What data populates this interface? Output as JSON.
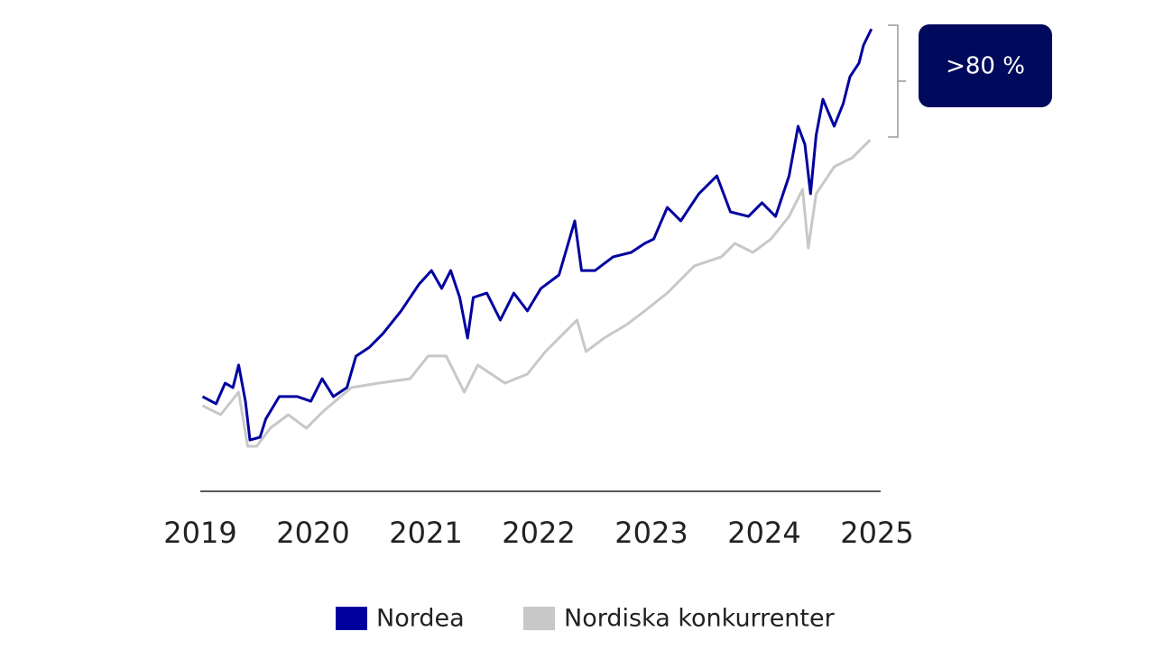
{
  "chart_data": {
    "type": "line",
    "annotation": ">80 %",
    "xlim": [
      2019,
      2025
    ],
    "xticks": [
      2019,
      2020,
      2021,
      2022,
      2023,
      2024,
      2025
    ],
    "ylim": [
      0,
      200
    ],
    "series": [
      {
        "name": "Nordiska konkurrenter",
        "color": "#c8c8c8",
        "x": [
          2019.02,
          2019.18,
          2019.34,
          2019.42,
          2019.5,
          2019.62,
          2019.78,
          2019.94,
          2020.1,
          2020.34,
          2020.58,
          2020.86,
          2021.02,
          2021.18,
          2021.34,
          2021.46,
          2021.7,
          2021.9,
          2022.06,
          2022.22,
          2022.34,
          2022.42,
          2022.58,
          2022.78,
          2022.94,
          2023.14,
          2023.38,
          2023.62,
          2023.74,
          2023.9,
          2024.06,
          2024.22,
          2024.34,
          2024.39,
          2024.46,
          2024.62,
          2024.78,
          2024.94
        ],
        "values": [
          36.9,
          33.0,
          42.7,
          19.4,
          19.4,
          27.2,
          33.0,
          27.2,
          34.9,
          44.7,
          46.6,
          48.5,
          58.3,
          58.3,
          42.7,
          54.4,
          46.6,
          50.5,
          60.2,
          68.0,
          73.8,
          60.2,
          66.0,
          71.8,
          77.7,
          85.4,
          97.1,
          101.0,
          106.8,
          102.9,
          108.7,
          118.4,
          130.1,
          104.8,
          128.1,
          139.8,
          143.7,
          151.4
        ]
      },
      {
        "name": "Nordea",
        "color": "#0000a0",
        "x": [
          2019.02,
          2019.14,
          2019.22,
          2019.29,
          2019.34,
          2019.4,
          2019.44,
          2019.53,
          2019.58,
          2019.7,
          2019.86,
          2019.98,
          2020.08,
          2020.18,
          2020.3,
          2020.38,
          2020.5,
          2020.62,
          2020.78,
          2020.94,
          2021.05,
          2021.14,
          2021.22,
          2021.3,
          2021.37,
          2021.42,
          2021.54,
          2021.66,
          2021.78,
          2021.9,
          2022.02,
          2022.18,
          2022.32,
          2022.38,
          2022.5,
          2022.66,
          2022.82,
          2022.94,
          2023.02,
          2023.14,
          2023.26,
          2023.42,
          2023.58,
          2023.7,
          2023.86,
          2023.98,
          2024.1,
          2024.22,
          2024.3,
          2024.36,
          2024.41,
          2024.46,
          2024.52,
          2024.62,
          2024.7,
          2024.76,
          2024.84,
          2024.88,
          2024.95
        ],
        "values": [
          40.8,
          37.7,
          46.6,
          44.7,
          54.4,
          38.8,
          22.1,
          23.3,
          31.1,
          40.8,
          40.8,
          38.8,
          48.5,
          40.8,
          44.7,
          58.2,
          62.1,
          68.0,
          77.7,
          89.3,
          95.1,
          87.4,
          95.1,
          83.5,
          66.0,
          83.5,
          85.4,
          73.8,
          85.4,
          77.7,
          87.4,
          93.2,
          116.5,
          95.1,
          95.1,
          101.0,
          102.9,
          106.8,
          108.7,
          122.3,
          116.5,
          128.2,
          135.9,
          120.4,
          118.4,
          124.3,
          118.4,
          135.9,
          157.3,
          149.5,
          128.2,
          153.4,
          168.9,
          157.3,
          167.0,
          178.6,
          184.5,
          192.2,
          199.2
        ]
      }
    ]
  }
}
